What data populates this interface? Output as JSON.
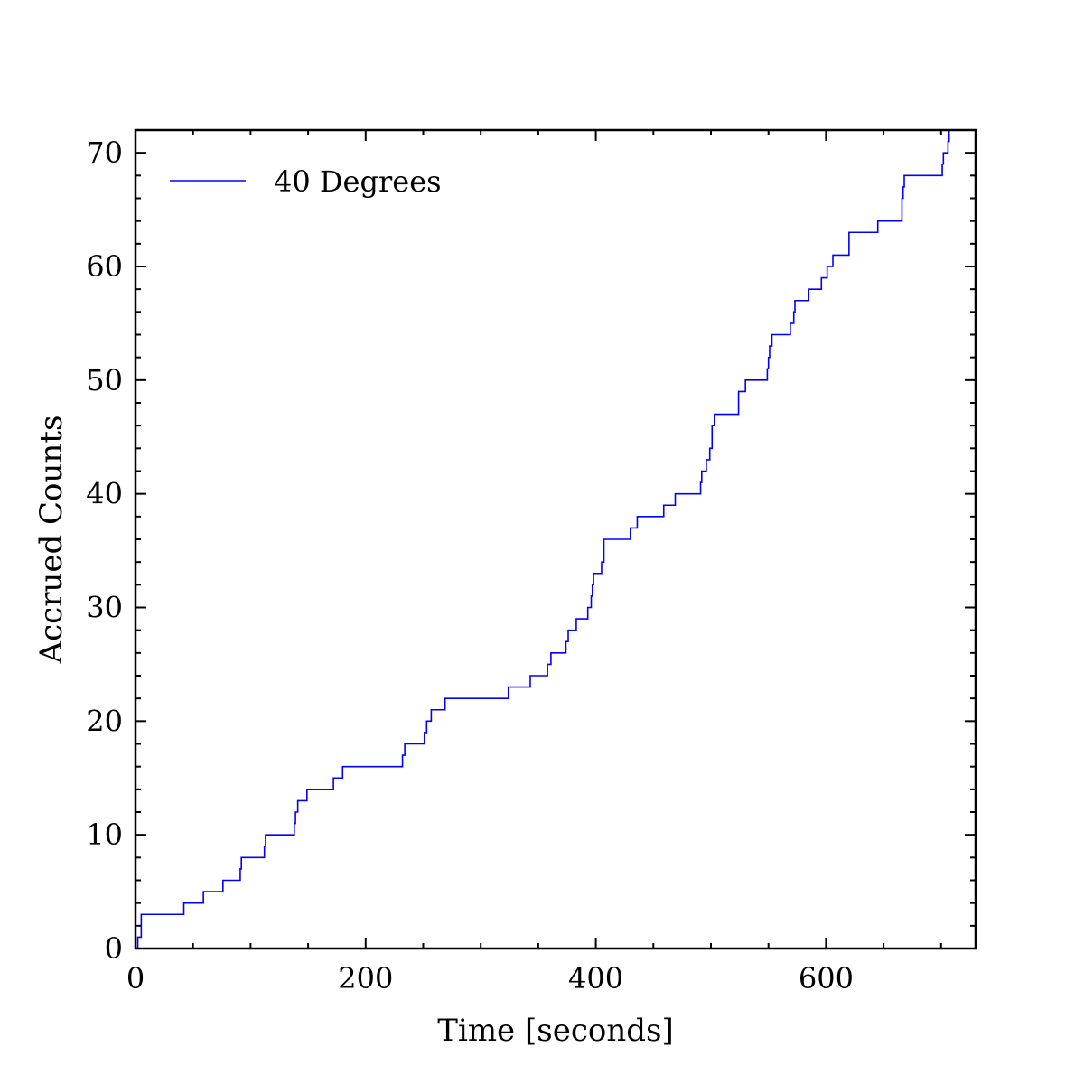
{
  "chart_data": {
    "type": "line",
    "step": true,
    "title": "",
    "xlabel": "Time [seconds]",
    "ylabel": "Accrued Counts",
    "xlim": [
      0,
      730
    ],
    "ylim": [
      0,
      72
    ],
    "xticks": [
      0,
      200,
      400,
      600
    ],
    "yticks": [
      0,
      10,
      20,
      30,
      40,
      50,
      60,
      70
    ],
    "legend": {
      "position": "top-left"
    },
    "grid": false,
    "series": [
      {
        "name": "40 Degrees",
        "color": "#0000ff",
        "x": [
          2,
          5,
          42,
          59,
          76,
          91,
          92,
          94,
          112,
          113,
          138,
          139,
          141,
          144,
          149,
          172,
          180,
          232,
          234,
          238,
          251,
          253,
          257,
          269,
          324,
          343,
          358,
          361,
          374,
          376,
          383,
          393,
          396,
          397,
          398,
          400,
          405,
          407,
          430,
          436,
          459,
          469,
          491,
          492,
          496,
          499,
          501,
          503,
          524,
          530,
          549,
          550,
          551,
          552,
          553,
          569,
          572,
          573,
          585,
          596,
          601,
          602,
          606,
          620,
          645,
          666,
          667,
          668,
          701,
          702,
          706,
          707
        ],
        "y": [
          1,
          3,
          4,
          5,
          6,
          7,
          8,
          8,
          9,
          10,
          11,
          12,
          13,
          13,
          14,
          15,
          16,
          17,
          18,
          18,
          19,
          20,
          21,
          22,
          23,
          24,
          25,
          26,
          27,
          28,
          29,
          30,
          31,
          32,
          33,
          33,
          34,
          36,
          37,
          38,
          39,
          40,
          41,
          42,
          43,
          44,
          46,
          47,
          49,
          50,
          51,
          52,
          53,
          53,
          54,
          55,
          56,
          57,
          58,
          59,
          60,
          60,
          61,
          63,
          64,
          66,
          67,
          68,
          69,
          70,
          71,
          72
        ]
      }
    ]
  }
}
